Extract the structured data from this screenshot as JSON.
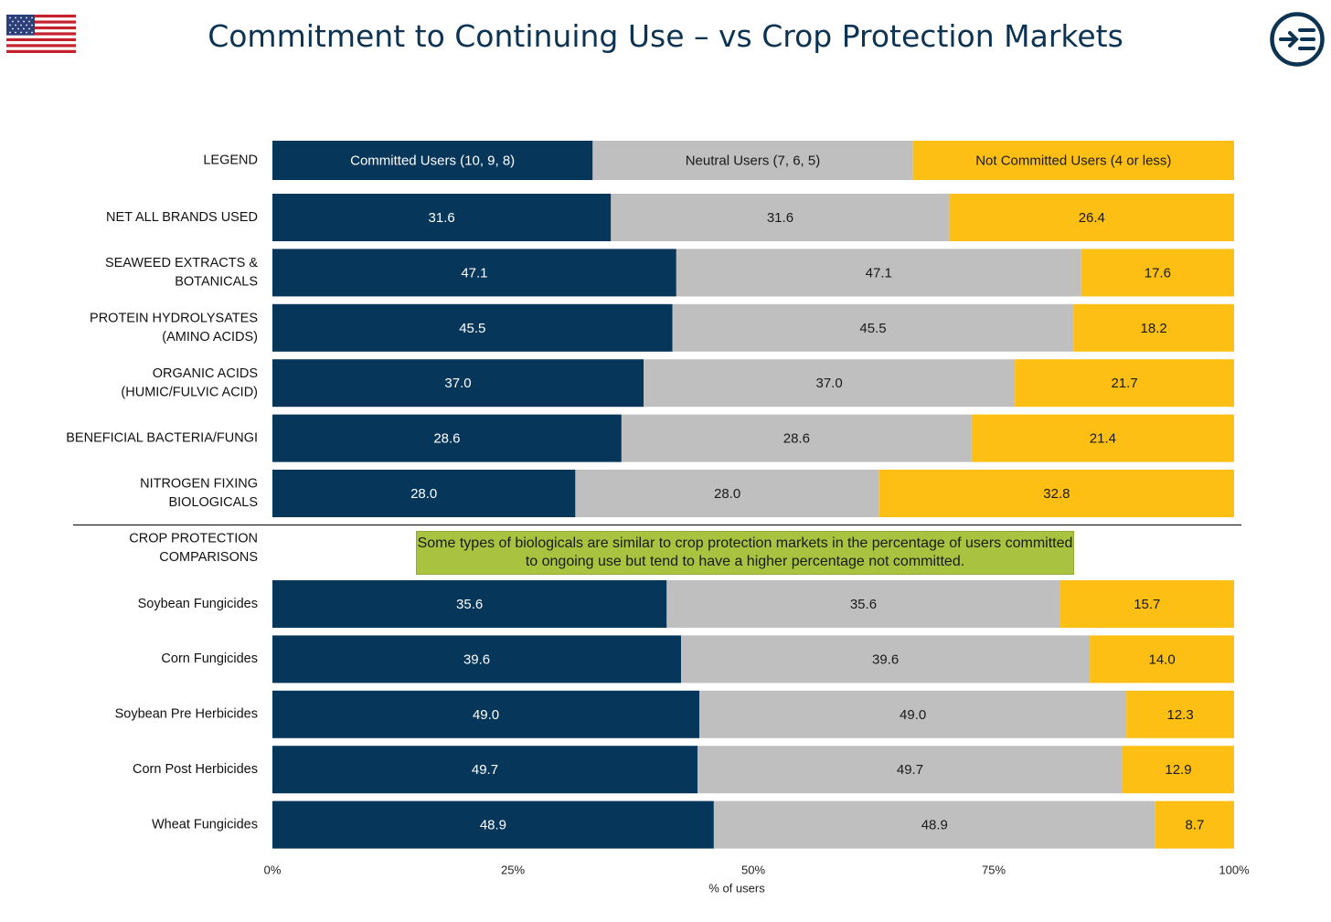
{
  "header": {
    "title": "Commitment to Continuing Use – vs Crop Protection Markets"
  },
  "colors": {
    "committed": "#06365a",
    "neutral": "#bfbfbf",
    "not_committed": "#fdbf13",
    "title": "#0d3353",
    "note_bg": "#a9c23f"
  },
  "icons": {
    "flag": "us-flag-icon",
    "logo": "menu-arrow-logo-icon"
  },
  "note": "Some types of biologicals are similar to crop protection markets in the percentage of users committed to ongoing use but tend to have a higher percentage not committed.",
  "chart_data": {
    "type": "bar",
    "orientation": "horizontal",
    "stacked": true,
    "legend": {
      "label": "LEGEND",
      "entries": [
        "Committed Users (10, 9, 8)",
        "Neutral Users (7, 6, 5)",
        "Not Committed Users (4 or less)"
      ]
    },
    "series_names": [
      "Committed Users (10, 9, 8)",
      "Neutral Users (7, 6, 5)",
      "Not Committed Users (4 or less)"
    ],
    "groups": [
      {
        "rows": [
          {
            "label": [
              "NET ALL BRANDS USED"
            ],
            "values": [
              31.6,
              31.6,
              26.4
            ],
            "segments": [
              35.2,
              35.2,
              29.6
            ]
          },
          {
            "label": [
              "SEAWEED EXTRACTS &",
              "BOTANICALS"
            ],
            "values": [
              47.1,
              47.1,
              17.6
            ],
            "segments": [
              42.0,
              42.1,
              15.9
            ]
          },
          {
            "label": [
              "PROTEIN HYDROLYSATES",
              "(AMINO ACIDS)"
            ],
            "values": [
              45.5,
              45.5,
              18.2
            ],
            "segments": [
              41.6,
              41.7,
              16.7
            ]
          },
          {
            "label": [
              "ORGANIC ACIDS",
              "(HUMIC/FULVIC ACID)"
            ],
            "values": [
              37.0,
              37.0,
              21.7
            ],
            "segments": [
              38.6,
              38.6,
              22.8
            ]
          },
          {
            "label": [
              "BENEFICIAL BACTERIA/FUNGI"
            ],
            "values": [
              28.6,
              28.6,
              21.4
            ],
            "segments": [
              36.3,
              36.4,
              27.3
            ]
          },
          {
            "label": [
              "NITROGEN FIXING",
              "BIOLOGICALS"
            ],
            "values": [
              28.0,
              28.0,
              32.8
            ],
            "segments": [
              31.5,
              31.6,
              36.9
            ]
          }
        ]
      },
      {
        "header": [
          "CROP PROTECTION",
          "COMPARISONS"
        ],
        "rows": [
          {
            "label": [
              "Soybean Fungicides"
            ],
            "values": [
              35.6,
              35.6,
              15.7
            ],
            "segments": [
              41.0,
              40.9,
              18.1
            ]
          },
          {
            "label": [
              "Corn Fungicides"
            ],
            "values": [
              39.6,
              39.6,
              14.0
            ],
            "segments": [
              42.5,
              42.5,
              15.0
            ]
          },
          {
            "label": [
              "Soybean Pre Herbicides"
            ],
            "values": [
              49.0,
              49.0,
              12.3
            ],
            "segments": [
              44.4,
              44.4,
              11.2
            ]
          },
          {
            "label": [
              "Corn Post Herbicides"
            ],
            "values": [
              49.7,
              49.7,
              12.9
            ],
            "segments": [
              44.2,
              44.2,
              11.6
            ]
          },
          {
            "label": [
              "Wheat Fungicides"
            ],
            "values": [
              48.9,
              48.9,
              8.7
            ],
            "segments": [
              45.9,
              45.9,
              8.2
            ]
          }
        ]
      }
    ],
    "xlim": [
      0,
      100
    ],
    "xticks": [
      "0%",
      "25%",
      "50%",
      "75%",
      "100%"
    ],
    "xlabel": "% of users"
  }
}
